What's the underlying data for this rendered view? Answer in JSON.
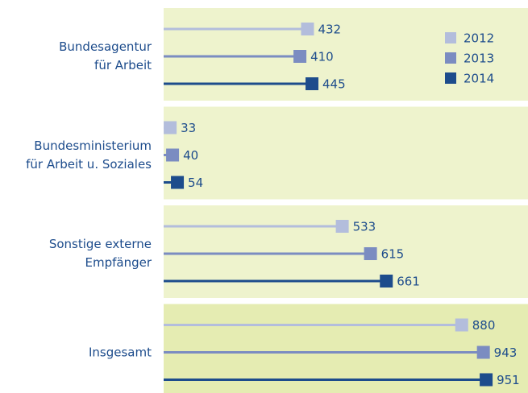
{
  "chart_data": {
    "type": "lollipop",
    "categories": [
      "Bundesagentur\nfür Arbeit",
      "Bundesministerium\nfür Arbeit u. Soziales",
      "Sonstige externe\nEmpfänger",
      "Insgesamt"
    ],
    "series": [
      {
        "name": "2012",
        "color": "#b3bddc",
        "values": [
          432,
          33,
          533,
          880
        ]
      },
      {
        "name": "2013",
        "color": "#7b8cc1",
        "values": [
          410,
          40,
          615,
          943
        ]
      },
      {
        "name": "2014",
        "color": "#1d4c8c",
        "values": [
          445,
          54,
          661,
          951
        ]
      }
    ]
  }
}
